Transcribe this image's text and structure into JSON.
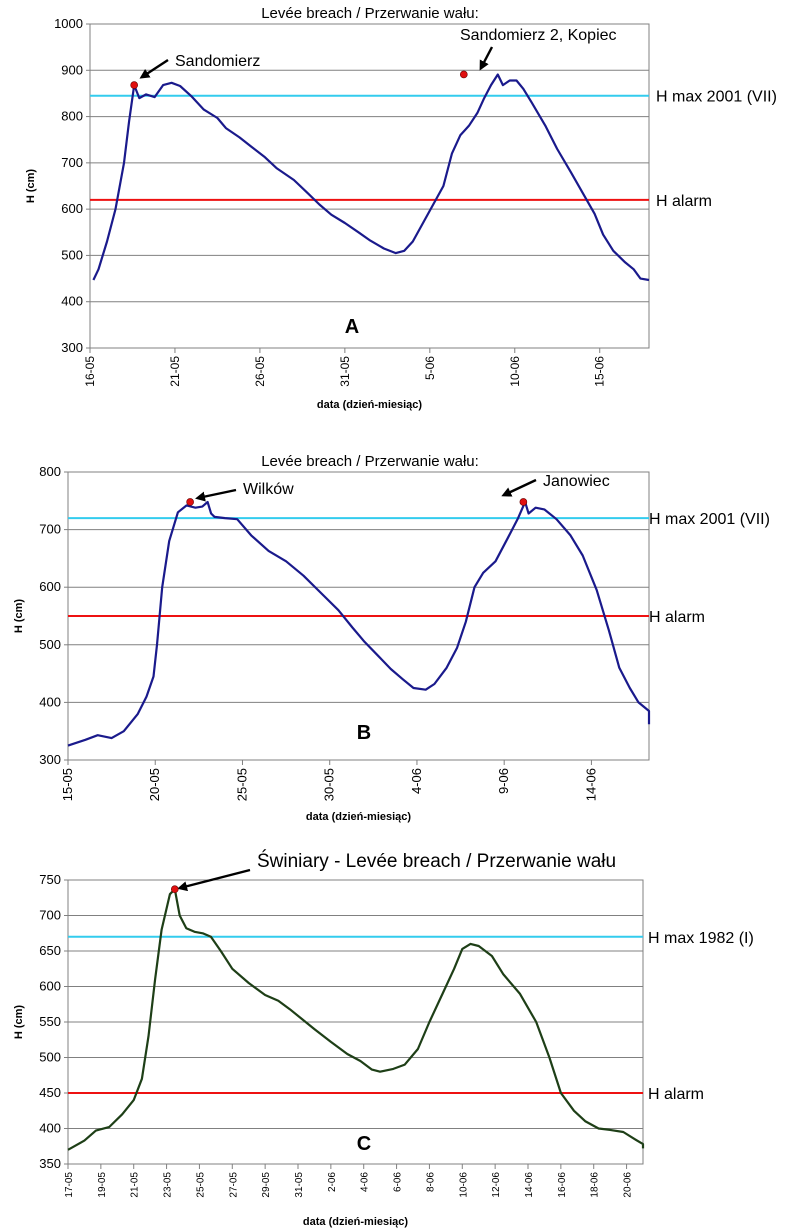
{
  "colors": {
    "cyan_line": "#33CCEE",
    "red_line": "#EE1111",
    "blue_series": "#1A1A8C",
    "green_series": "#1E3F17",
    "marker": "#E01010"
  },
  "chart_data": [
    {
      "type": "line",
      "panel_label": "A",
      "title": "Levée breach / Przerwanie wału:",
      "xlabel": "data (dzień-miesiąc)",
      "ylabel": "H (cm)",
      "ylim": [
        300,
        1000
      ],
      "yticks": [
        300,
        400,
        500,
        600,
        700,
        800,
        900,
        1000
      ],
      "xlim": [
        0,
        32.9
      ],
      "xticks": [
        {
          "x": 0,
          "label": "16-05"
        },
        {
          "x": 5,
          "label": "21-05"
        },
        {
          "x": 10,
          "label": "26-05"
        },
        {
          "x": 15,
          "label": "31-05"
        },
        {
          "x": 20,
          "label": "5-06"
        },
        {
          "x": 25,
          "label": "10-06"
        },
        {
          "x": 30,
          "label": "15-06"
        }
      ],
      "grid": "horizontal",
      "reference_lines": [
        {
          "name": "H max 2001 (VII)",
          "value": 845,
          "color": "cyan"
        },
        {
          "name": "H alarm",
          "value": 620,
          "color": "red"
        }
      ],
      "annotations": [
        {
          "text": "Sandomierz",
          "x": 2.6,
          "y": 868
        },
        {
          "text": "Sandomierz 2, Kopiec",
          "x": 22.0,
          "y": 891
        }
      ],
      "series": [
        {
          "values": [
            [
              0.2,
              447
            ],
            [
              0.5,
              470
            ],
            [
              1,
              530
            ],
            [
              1.5,
              600
            ],
            [
              2,
              700
            ],
            [
              2.3,
              790
            ],
            [
              2.6,
              868
            ],
            [
              2.9,
              840
            ],
            [
              3.3,
              848
            ],
            [
              3.8,
              842
            ],
            [
              4.3,
              868
            ],
            [
              4.8,
              873
            ],
            [
              5.3,
              866
            ],
            [
              6,
              843
            ],
            [
              6.7,
              815
            ],
            [
              7.5,
              797
            ],
            [
              8,
              775
            ],
            [
              8.8,
              755
            ],
            [
              9.5,
              735
            ],
            [
              10.3,
              712
            ],
            [
              11,
              688
            ],
            [
              12,
              663
            ],
            [
              12.8,
              635
            ],
            [
              13.5,
              610
            ],
            [
              14.2,
              588
            ],
            [
              15,
              570
            ],
            [
              15.8,
              550
            ],
            [
              16.5,
              532
            ],
            [
              17.3,
              515
            ],
            [
              18,
              505
            ],
            [
              18.5,
              510
            ],
            [
              19,
              530
            ],
            [
              19.6,
              570
            ],
            [
              20.2,
              610
            ],
            [
              20.8,
              650
            ],
            [
              21.3,
              720
            ],
            [
              21.8,
              760
            ],
            [
              22.3,
              780
            ],
            [
              22.8,
              808
            ],
            [
              23.2,
              840
            ],
            [
              23.6,
              868
            ],
            [
              24,
              891
            ],
            [
              24.3,
              868
            ],
            [
              24.7,
              878
            ],
            [
              25.1,
              878
            ],
            [
              25.5,
              860
            ],
            [
              26,
              830
            ],
            [
              26.8,
              780
            ],
            [
              27.5,
              730
            ],
            [
              28.3,
              680
            ],
            [
              29,
              635
            ],
            [
              29.7,
              590
            ],
            [
              30.2,
              545
            ],
            [
              30.8,
              510
            ],
            [
              31.5,
              485
            ],
            [
              32,
              470
            ],
            [
              32.4,
              450
            ],
            [
              32.9,
              447
            ]
          ]
        }
      ]
    },
    {
      "type": "line",
      "panel_label": "B",
      "title": "Levée breach / Przerwanie wału:",
      "xlabel": "data (dzień-miesiąc)",
      "ylabel": "H (cm)",
      "ylim": [
        300,
        800
      ],
      "yticks": [
        300,
        400,
        500,
        600,
        700,
        800
      ],
      "xlim": [
        0,
        33.3
      ],
      "xticks": [
        {
          "x": 0,
          "label": "15-05"
        },
        {
          "x": 5,
          "label": "20-05"
        },
        {
          "x": 10,
          "label": "25-05"
        },
        {
          "x": 15,
          "label": "30-05"
        },
        {
          "x": 20,
          "label": "4-06"
        },
        {
          "x": 25,
          "label": "9-06"
        },
        {
          "x": 30,
          "label": "14-06"
        }
      ],
      "grid": "horizontal",
      "reference_lines": [
        {
          "name": "H max 2001 (VII)",
          "value": 720,
          "color": "cyan"
        },
        {
          "name": "H alarm",
          "value": 550,
          "color": "red"
        }
      ],
      "annotations": [
        {
          "text": "Wilków",
          "x": 7.0,
          "y": 748
        },
        {
          "text": "Janowiec",
          "x": 26.1,
          "y": 748
        }
      ],
      "series": [
        {
          "values": [
            [
              0,
              325
            ],
            [
              1,
              335
            ],
            [
              1.7,
              343
            ],
            [
              2.5,
              338
            ],
            [
              3.2,
              350
            ],
            [
              4,
              380
            ],
            [
              4.5,
              410
            ],
            [
              4.9,
              445
            ],
            [
              5.1,
              500
            ],
            [
              5.4,
              600
            ],
            [
              5.8,
              680
            ],
            [
              6.3,
              730
            ],
            [
              6.8,
              742
            ],
            [
              7.3,
              738
            ],
            [
              7.7,
              740
            ],
            [
              8,
              748
            ],
            [
              8.2,
              728
            ],
            [
              8.4,
              722
            ],
            [
              9,
              720
            ],
            [
              9.7,
              718
            ],
            [
              10.5,
              690
            ],
            [
              11.5,
              663
            ],
            [
              12.5,
              645
            ],
            [
              13.5,
              620
            ],
            [
              14.5,
              590
            ],
            [
              15.5,
              560
            ],
            [
              16.3,
              530
            ],
            [
              17,
              505
            ],
            [
              17.8,
              480
            ],
            [
              18.5,
              458
            ],
            [
              19.2,
              440
            ],
            [
              19.8,
              425
            ],
            [
              20.5,
              422
            ],
            [
              21,
              432
            ],
            [
              21.7,
              460
            ],
            [
              22.3,
              495
            ],
            [
              22.8,
              540
            ],
            [
              23.3,
              600
            ],
            [
              23.8,
              625
            ],
            [
              24.5,
              645
            ],
            [
              25.2,
              685
            ],
            [
              25.8,
              720
            ],
            [
              26.2,
              748
            ],
            [
              26.4,
              728
            ],
            [
              26.8,
              738
            ],
            [
              27.3,
              735
            ],
            [
              28,
              718
            ],
            [
              28.8,
              690
            ],
            [
              29.5,
              655
            ],
            [
              30.3,
              595
            ],
            [
              31,
              525
            ],
            [
              31.6,
              460
            ],
            [
              32.2,
              425
            ],
            [
              32.7,
              400
            ],
            [
              33.3,
              385
            ],
            [
              34,
              372
            ],
            [
              34.6,
              362
            ]
          ]
        }
      ]
    },
    {
      "type": "line",
      "panel_label": "C",
      "title": "Świniary - Levée breach / Przerwanie wału",
      "xlabel": "data (dzień-miesiąc)",
      "ylabel": "H (cm)",
      "ylim": [
        350,
        750
      ],
      "yticks": [
        350,
        400,
        450,
        500,
        550,
        600,
        650,
        700,
        750
      ],
      "xlim": [
        0,
        35
      ],
      "xticks": [
        {
          "x": 0,
          "label": "17-05"
        },
        {
          "x": 2,
          "label": "19-05"
        },
        {
          "x": 4,
          "label": "21-05"
        },
        {
          "x": 6,
          "label": "23-05"
        },
        {
          "x": 8,
          "label": "25-05"
        },
        {
          "x": 10,
          "label": "27-05"
        },
        {
          "x": 12,
          "label": "29-05"
        },
        {
          "x": 14,
          "label": "31-05"
        },
        {
          "x": 16,
          "label": "2-06"
        },
        {
          "x": 18,
          "label": "4-06"
        },
        {
          "x": 20,
          "label": "6-06"
        },
        {
          "x": 22,
          "label": "8-06"
        },
        {
          "x": 24,
          "label": "10-06"
        },
        {
          "x": 26,
          "label": "12-06"
        },
        {
          "x": 28,
          "label": "14-06"
        },
        {
          "x": 30,
          "label": "16-06"
        },
        {
          "x": 32,
          "label": "18-06"
        },
        {
          "x": 34,
          "label": "20-06"
        }
      ],
      "grid": "horizontal",
      "reference_lines": [
        {
          "name": "H max 1982 (I)",
          "value": 670,
          "color": "cyan"
        },
        {
          "name": "H alarm",
          "value": 450,
          "color": "red"
        }
      ],
      "annotations": [
        {
          "text": "Świniary - Levée breach / Przerwanie wału",
          "x": 6.5,
          "y": 737
        }
      ],
      "series": [
        {
          "values": [
            [
              0,
              370
            ],
            [
              1,
              383
            ],
            [
              1.7,
              397
            ],
            [
              2.5,
              402
            ],
            [
              3.3,
              420
            ],
            [
              4,
              440
            ],
            [
              4.5,
              470
            ],
            [
              4.9,
              530
            ],
            [
              5.3,
              610
            ],
            [
              5.7,
              680
            ],
            [
              6.2,
              730
            ],
            [
              6.5,
              737
            ],
            [
              6.8,
              700
            ],
            [
              7.2,
              682
            ],
            [
              7.7,
              677
            ],
            [
              8.2,
              675
            ],
            [
              8.7,
              670
            ],
            [
              9.3,
              650
            ],
            [
              10,
              625
            ],
            [
              11,
              605
            ],
            [
              12,
              588
            ],
            [
              12.8,
              580
            ],
            [
              13.5,
              568
            ],
            [
              14.2,
              555
            ],
            [
              15,
              540
            ],
            [
              16,
              522
            ],
            [
              17,
              505
            ],
            [
              17.8,
              495
            ],
            [
              18.5,
              483
            ],
            [
              19,
              480
            ],
            [
              19.8,
              484
            ],
            [
              20.5,
              490
            ],
            [
              21.3,
              512
            ],
            [
              22,
              550
            ],
            [
              22.8,
              590
            ],
            [
              23.5,
              625
            ],
            [
              24,
              653
            ],
            [
              24.5,
              660
            ],
            [
              25,
              657
            ],
            [
              25.8,
              643
            ],
            [
              26.5,
              617
            ],
            [
              27.5,
              590
            ],
            [
              28.5,
              550
            ],
            [
              29.3,
              500
            ],
            [
              30,
              450
            ],
            [
              30.8,
              425
            ],
            [
              31.5,
              410
            ],
            [
              32.3,
              400
            ],
            [
              33,
              398
            ],
            [
              33.8,
              395
            ],
            [
              34.5,
              385
            ],
            [
              35.3,
              378
            ],
            [
              35.8,
              372
            ]
          ]
        }
      ]
    }
  ]
}
